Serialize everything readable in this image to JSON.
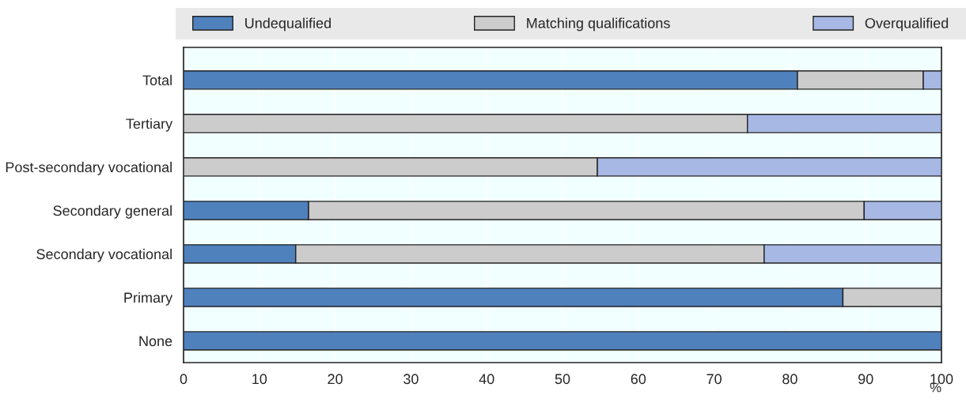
{
  "chart_data": {
    "type": "bar",
    "orientation": "horizontal",
    "stacked": true,
    "xlabel": "%",
    "categories": [
      "Total",
      "Tertiary",
      "Post-secondary vocational",
      "Secondary general",
      "Secondary vocational",
      "Primary",
      "None"
    ],
    "series": [
      {
        "name": "Undequalified",
        "color": "#4f81bd",
        "values": [
          81.0,
          null,
          null,
          16.5,
          14.8,
          87.0,
          100
        ]
      },
      {
        "name": "Matching qualifications",
        "color": "#cccccc",
        "values": [
          16.6,
          74.4,
          54.6,
          73.3,
          61.8,
          13.0,
          null
        ]
      },
      {
        "name": "Overqualified",
        "color": "#a6b8e3",
        "values": [
          2.4,
          25.6,
          45.4,
          10.2,
          23.4,
          null,
          null
        ]
      }
    ],
    "xlim": [
      0,
      100
    ],
    "xticks": [
      0,
      10,
      20,
      30,
      40,
      50,
      60,
      70,
      80,
      90,
      100
    ],
    "grid": "x",
    "legend": "top"
  }
}
